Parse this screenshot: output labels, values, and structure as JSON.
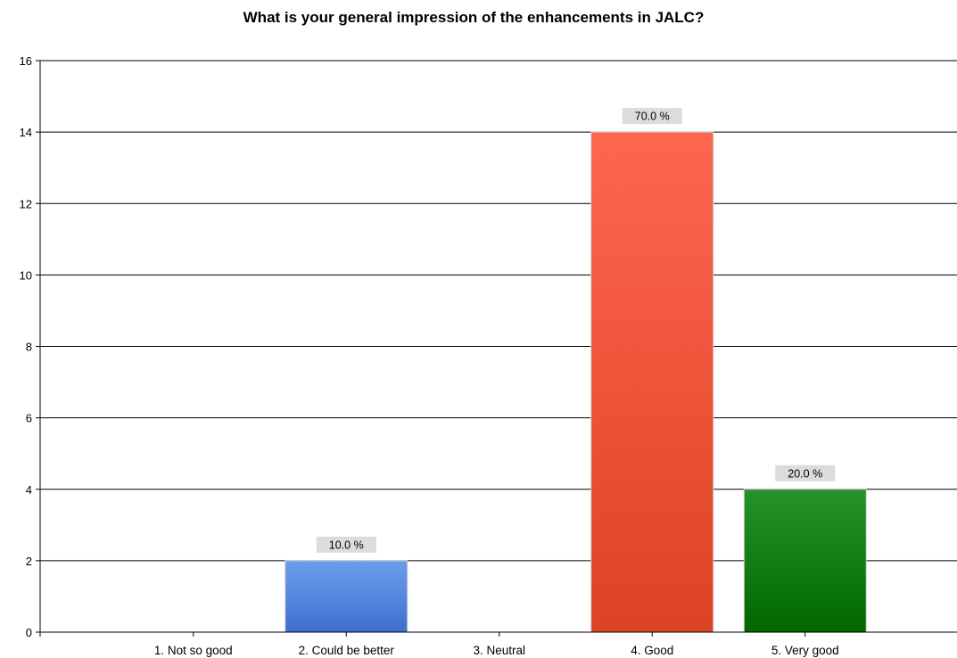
{
  "chart_data": {
    "type": "bar",
    "title": "What is your general impression of the enhancements in JALC?",
    "categories": [
      "1. Not so good",
      "2. Could be better",
      "3. Neutral",
      "4. Good",
      "5. Very good"
    ],
    "values": [
      0,
      2,
      0,
      14,
      4
    ],
    "data_labels": [
      "",
      "10.0 %",
      "",
      "70.0 %",
      "20.0 %"
    ],
    "ylim": [
      0,
      16
    ],
    "yticks": [
      0,
      2,
      4,
      6,
      8,
      10,
      12,
      14,
      16
    ],
    "grid": true,
    "legend": "none",
    "colors": [
      {
        "top": "#6c9eec",
        "bottom": "#3f6fcf"
      },
      {
        "top": "#6c9eec",
        "bottom": "#3f6fcf"
      },
      {
        "top": "#6c9eec",
        "bottom": "#3f6fcf"
      },
      {
        "top": "#ff6650",
        "bottom": "#dc4224"
      },
      {
        "top": "#26922a",
        "bottom": "#006700"
      }
    ]
  }
}
